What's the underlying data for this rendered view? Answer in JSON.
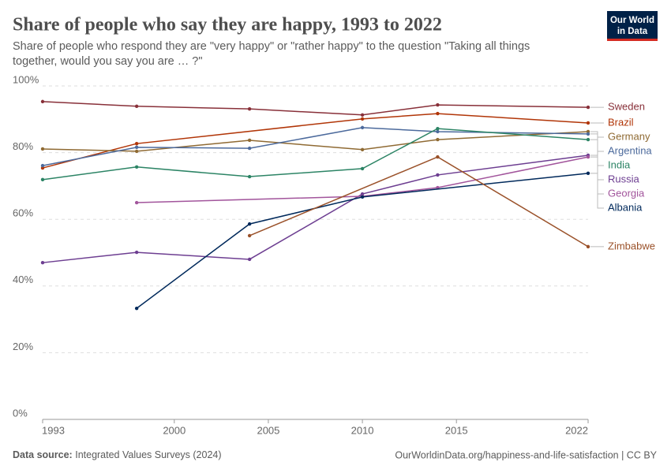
{
  "chart_data": {
    "type": "line",
    "title": "Share of people who say they are happy, 1993 to 2022",
    "subtitle": "Share of people who respond they are \"very happy\" or \"rather happy\" to the question \"Taking all things together, would you say you are … ?\"",
    "logo": [
      "Our World",
      "in Data"
    ],
    "source_label": "Data source:",
    "source": "Integrated Values Surveys (2024)",
    "credit": "OurWorldinData.org/happiness-and-life-satisfaction | CC BY",
    "x": [
      1993,
      1998,
      2004,
      2010,
      2014,
      2022
    ],
    "xlim": [
      1993,
      2022
    ],
    "xticks": [
      1993,
      2000,
      2005,
      2010,
      2015,
      2022
    ],
    "ylim": [
      0,
      100
    ],
    "yticks": [
      {
        "value": 0,
        "label": "0%"
      },
      {
        "value": 20,
        "label": "20%"
      },
      {
        "value": 40,
        "label": "40%"
      },
      {
        "value": 60,
        "label": "60%"
      },
      {
        "value": 80,
        "label": "80%"
      },
      {
        "value": 100,
        "label": "100%"
      }
    ],
    "grid": true,
    "series": [
      {
        "name": "Sweden",
        "color": "#883039",
        "values": [
          95.3,
          93.9,
          93.1,
          91.3,
          94.3,
          93.6
        ]
      },
      {
        "name": "Brazil",
        "color": "#b13507",
        "values": [
          75.4,
          82.7,
          null,
          90.1,
          91.7,
          88.9
        ]
      },
      {
        "name": "Germany",
        "color": "#8f6a33",
        "values": [
          81.1,
          80.4,
          83.7,
          80.9,
          83.9,
          86.3
        ]
      },
      {
        "name": "Argentina",
        "color": "#4c6a9c",
        "values": [
          76.1,
          81.6,
          81.3,
          87.5,
          86.3,
          85.6
        ]
      },
      {
        "name": "India",
        "color": "#2c8465",
        "values": [
          71.9,
          75.7,
          72.8,
          75.2,
          87.2,
          83.9
        ]
      },
      {
        "name": "Russia",
        "color": "#6d3e91",
        "values": [
          47.0,
          50.1,
          48.0,
          67.6,
          73.3,
          79.2
        ]
      },
      {
        "name": "Georgia",
        "color": "#a2559c",
        "values": [
          null,
          65.0,
          null,
          66.9,
          69.5,
          78.7
        ]
      },
      {
        "name": "Albania",
        "color": "#00295b",
        "values": [
          null,
          33.3,
          58.6,
          66.7,
          null,
          73.8
        ]
      },
      {
        "name": "Zimbabwe",
        "color": "#9a5129",
        "values": [
          null,
          null,
          55.1,
          null,
          78.7,
          51.8
        ]
      }
    ]
  }
}
